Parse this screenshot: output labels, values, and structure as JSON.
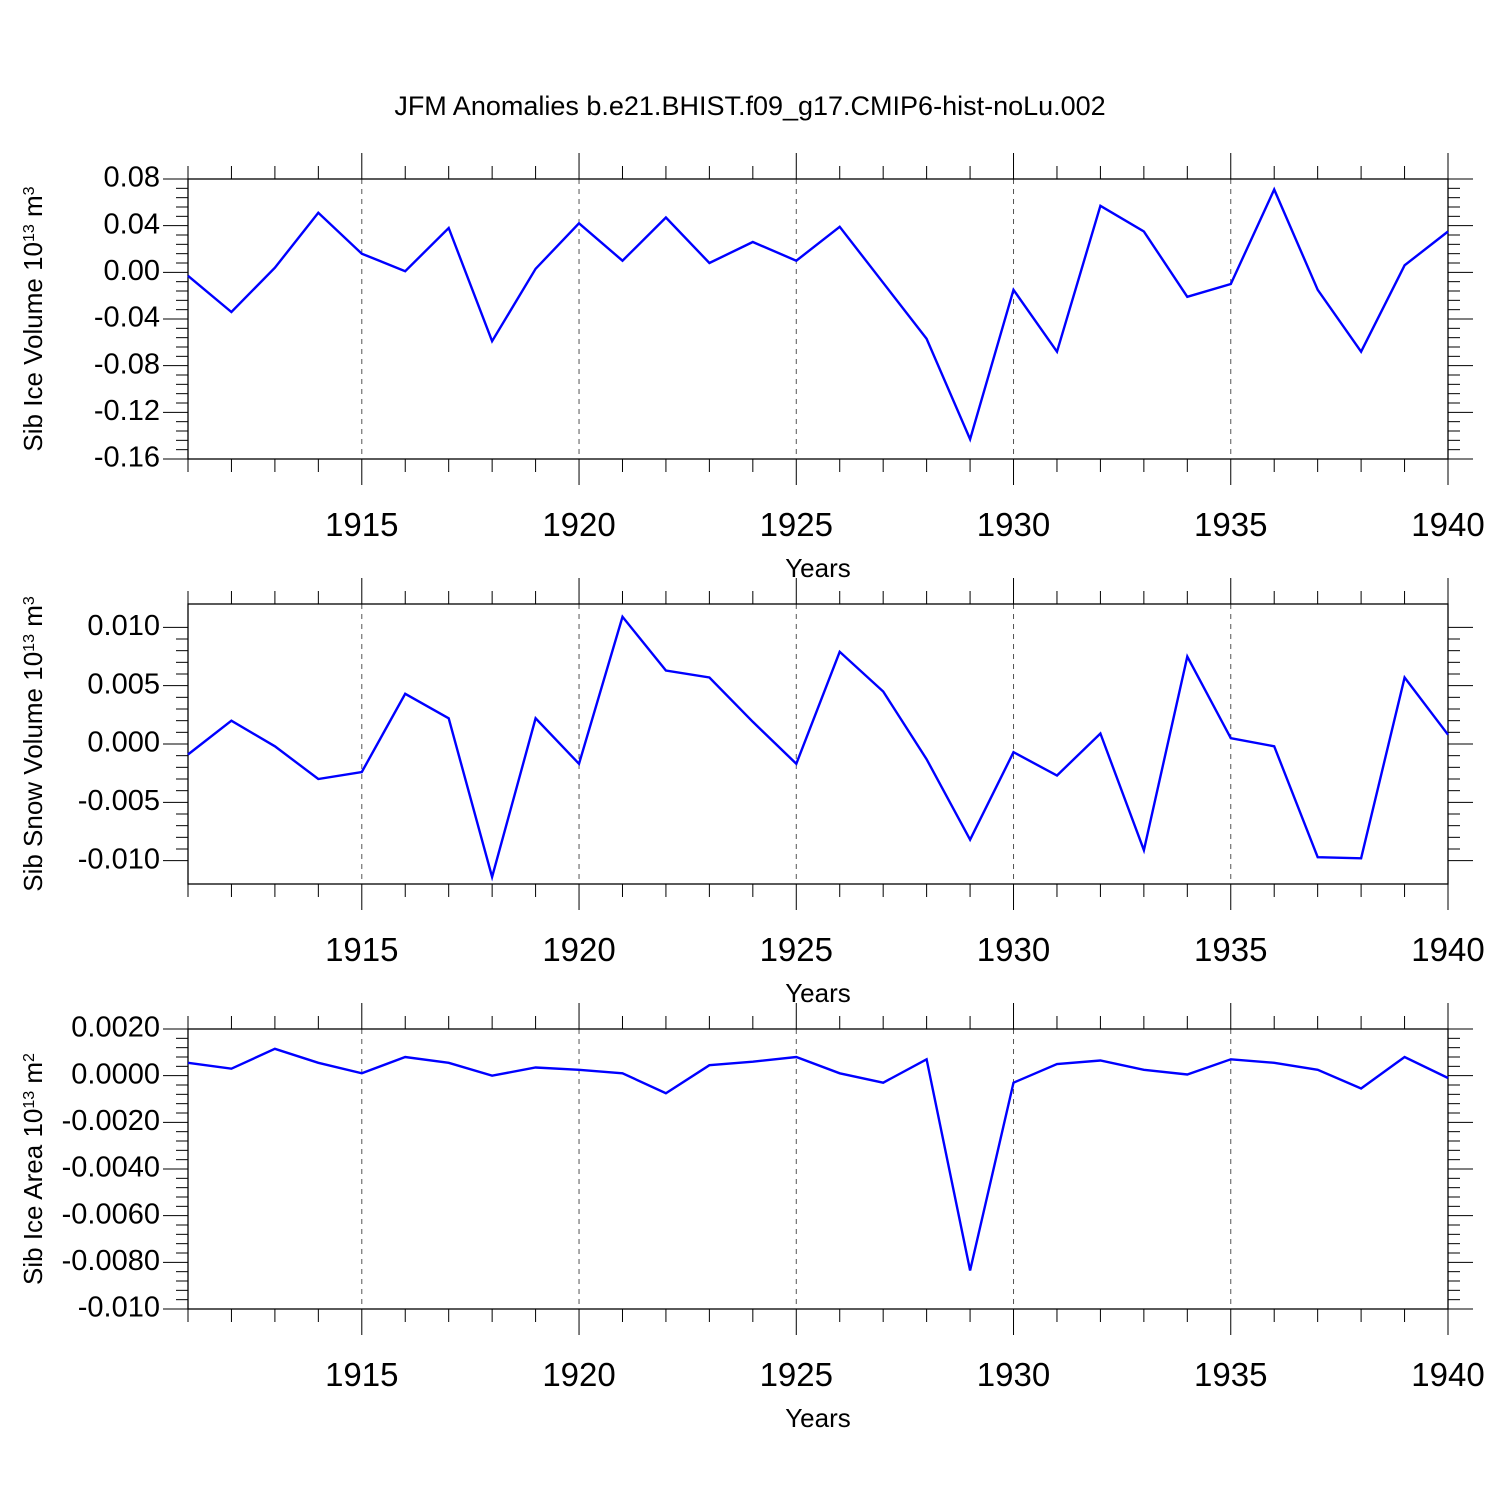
{
  "title": "JFM Anomalies b.e21.BHIST.f09_g17.CMIP6-hist-noLu.002",
  "line_color": "#0000ff",
  "chart_data": [
    {
      "type": "line",
      "xlabel": "Years",
      "ylabel_main": "Sib Ice Volume 10",
      "ylabel_sup1": "13",
      "ylabel_unit": " m",
      "ylabel_sup2": "3",
      "xlim": [
        1911,
        1940
      ],
      "ylim": [
        -0.16,
        0.08
      ],
      "xticks": [
        1915,
        1920,
        1925,
        1930,
        1935,
        1940
      ],
      "yticks": [
        -0.16,
        -0.12,
        -0.08,
        -0.04,
        0.0,
        0.04,
        0.08
      ],
      "ytick_labels": [
        "-0.16",
        "-0.12",
        "-0.08",
        "-0.04",
        "0.00",
        "0.04",
        "0.08"
      ],
      "x": [
        1911,
        1912,
        1913,
        1914,
        1915,
        1916,
        1917,
        1918,
        1919,
        1920,
        1921,
        1922,
        1923,
        1924,
        1925,
        1926,
        1927,
        1928,
        1929,
        1930,
        1931,
        1932,
        1933,
        1934,
        1935,
        1936,
        1937,
        1938,
        1939,
        1940
      ],
      "series": [
        {
          "values": [
            -0.003,
            -0.034,
            0.004,
            0.051,
            0.016,
            0.001,
            0.038,
            -0.059,
            0.003,
            0.042,
            0.01,
            0.047,
            0.008,
            0.026,
            0.01,
            0.039,
            -0.009,
            -0.057,
            -0.143,
            -0.015,
            -0.068,
            0.057,
            0.035,
            -0.021,
            -0.01,
            0.071,
            -0.015,
            -0.068,
            0.006,
            0.035
          ]
        }
      ]
    },
    {
      "type": "line",
      "xlabel": "Years",
      "ylabel_main": "Sib Snow Volume 10",
      "ylabel_sup1": "13",
      "ylabel_unit": " m",
      "ylabel_sup2": "3",
      "xlim": [
        1911,
        1940
      ],
      "ylim": [
        -0.012,
        0.012
      ],
      "xticks": [
        1915,
        1920,
        1925,
        1930,
        1935,
        1940
      ],
      "yticks": [
        -0.01,
        -0.005,
        0.0,
        0.005,
        0.01
      ],
      "ytick_labels": [
        "-0.010",
        "-0.005",
        "0.000",
        "0.005",
        "0.010"
      ],
      "x": [
        1911,
        1912,
        1913,
        1914,
        1915,
        1916,
        1917,
        1918,
        1919,
        1920,
        1921,
        1922,
        1923,
        1924,
        1925,
        1926,
        1927,
        1928,
        1929,
        1930,
        1931,
        1932,
        1933,
        1934,
        1935,
        1936,
        1937,
        1938,
        1939,
        1940
      ],
      "series": [
        {
          "values": [
            -0.0009,
            0.002,
            -0.0002,
            -0.003,
            -0.0024,
            0.0043,
            0.0022,
            -0.0114,
            0.0022,
            -0.0017,
            0.0109,
            0.0063,
            0.0057,
            0.0019,
            -0.0017,
            0.0079,
            0.0045,
            -0.0013,
            -0.0082,
            -0.0007,
            -0.0027,
            0.0009,
            -0.0091,
            0.0075,
            0.0005,
            -0.0002,
            -0.0097,
            -0.0098,
            0.0057,
            0.0008
          ]
        }
      ]
    },
    {
      "type": "line",
      "xlabel": "Years",
      "ylabel_main": "Sib Ice Area 10",
      "ylabel_sup1": "13",
      "ylabel_unit": " m",
      "ylabel_sup2": "2",
      "xlim": [
        1911,
        1940
      ],
      "ylim": [
        -0.01,
        0.002
      ],
      "xticks": [
        1915,
        1920,
        1925,
        1930,
        1935,
        1940
      ],
      "yticks": [
        -0.01,
        -0.008,
        -0.006,
        -0.004,
        -0.002,
        0.0,
        0.002
      ],
      "ytick_labels": [
        "-0.010",
        "-0.0080",
        "-0.0060",
        "-0.0040",
        "-0.0020",
        "0.0000",
        "0.0020"
      ],
      "x": [
        1911,
        1912,
        1913,
        1914,
        1915,
        1916,
        1917,
        1918,
        1919,
        1920,
        1921,
        1922,
        1923,
        1924,
        1925,
        1926,
        1927,
        1928,
        1929,
        1930,
        1931,
        1932,
        1933,
        1934,
        1935,
        1936,
        1937,
        1938,
        1939,
        1940
      ],
      "series": [
        {
          "values": [
            0.00055,
            0.0003,
            0.00115,
            0.00055,
            0.0001,
            0.0008,
            0.00055,
            0.0,
            0.00035,
            0.00025,
            0.0001,
            -0.00075,
            0.00045,
            0.0006,
            0.0008,
            0.0001,
            -0.0003,
            0.0007,
            -0.00835,
            -0.0003,
            0.0005,
            0.00065,
            0.00025,
            5e-05,
            0.0007,
            0.00055,
            0.00025,
            -0.00055,
            0.0008,
            -0.0001
          ]
        }
      ]
    }
  ]
}
